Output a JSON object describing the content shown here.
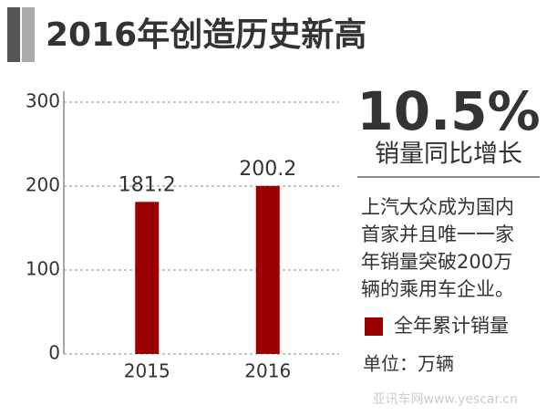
{
  "chart_data": {
    "type": "bar",
    "title": "2016年创造历史新高",
    "categories": [
      "2015",
      "2016"
    ],
    "series": [
      {
        "name": "全年累计销量",
        "color": "#9b0000",
        "values": [
          181.2,
          200.2
        ]
      }
    ],
    "ylim": [
      0,
      300
    ],
    "yticks": [
      0,
      100,
      200,
      300
    ],
    "grid": true,
    "highlight": "10.5%",
    "highlight_caption": "销量同比增长",
    "note": [
      "上汽大众成为国内",
      "首家并且唯一一家",
      "年销量突破200万",
      "辆的乘用车企业。"
    ],
    "unit": "单位：万辆",
    "watermark": "亚讯车网www.yescar.cn"
  }
}
